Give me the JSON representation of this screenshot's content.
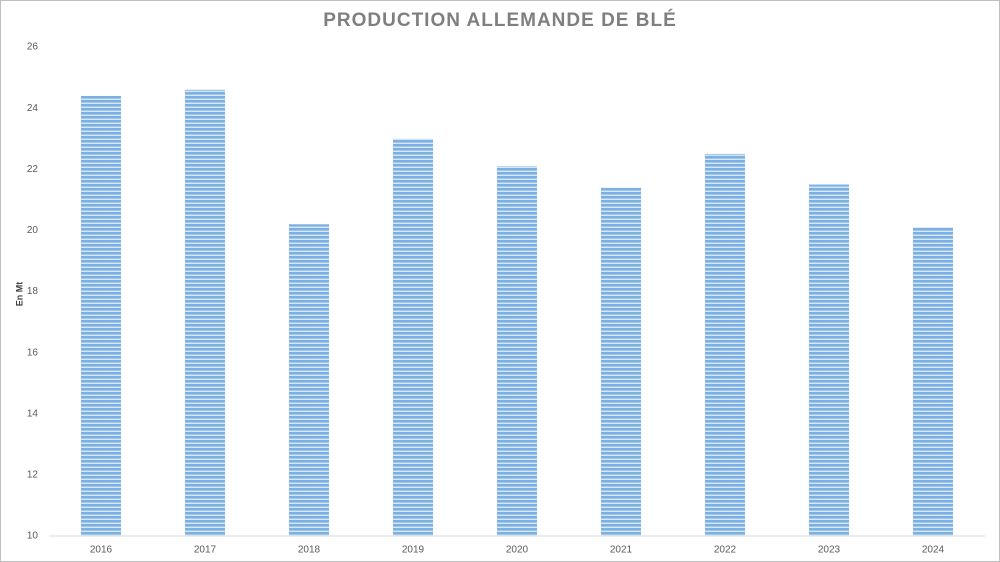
{
  "chart_data": {
    "type": "bar",
    "title": "PRODUCTION ALLEMANDE DE BLÉ",
    "y_label": "En Mt",
    "categories": [
      "2016",
      "2017",
      "2018",
      "2019",
      "2020",
      "2021",
      "2022",
      "2023",
      "2024"
    ],
    "values": [
      24.4,
      24.6,
      20.2,
      23.0,
      22.1,
      21.4,
      22.5,
      21.5,
      20.1
    ],
    "color": "#7cb0e2",
    "ylim": [
      10,
      26
    ],
    "yticks": [
      10,
      12,
      14,
      16,
      18,
      20,
      22,
      24,
      26
    ],
    "grid": false
  }
}
